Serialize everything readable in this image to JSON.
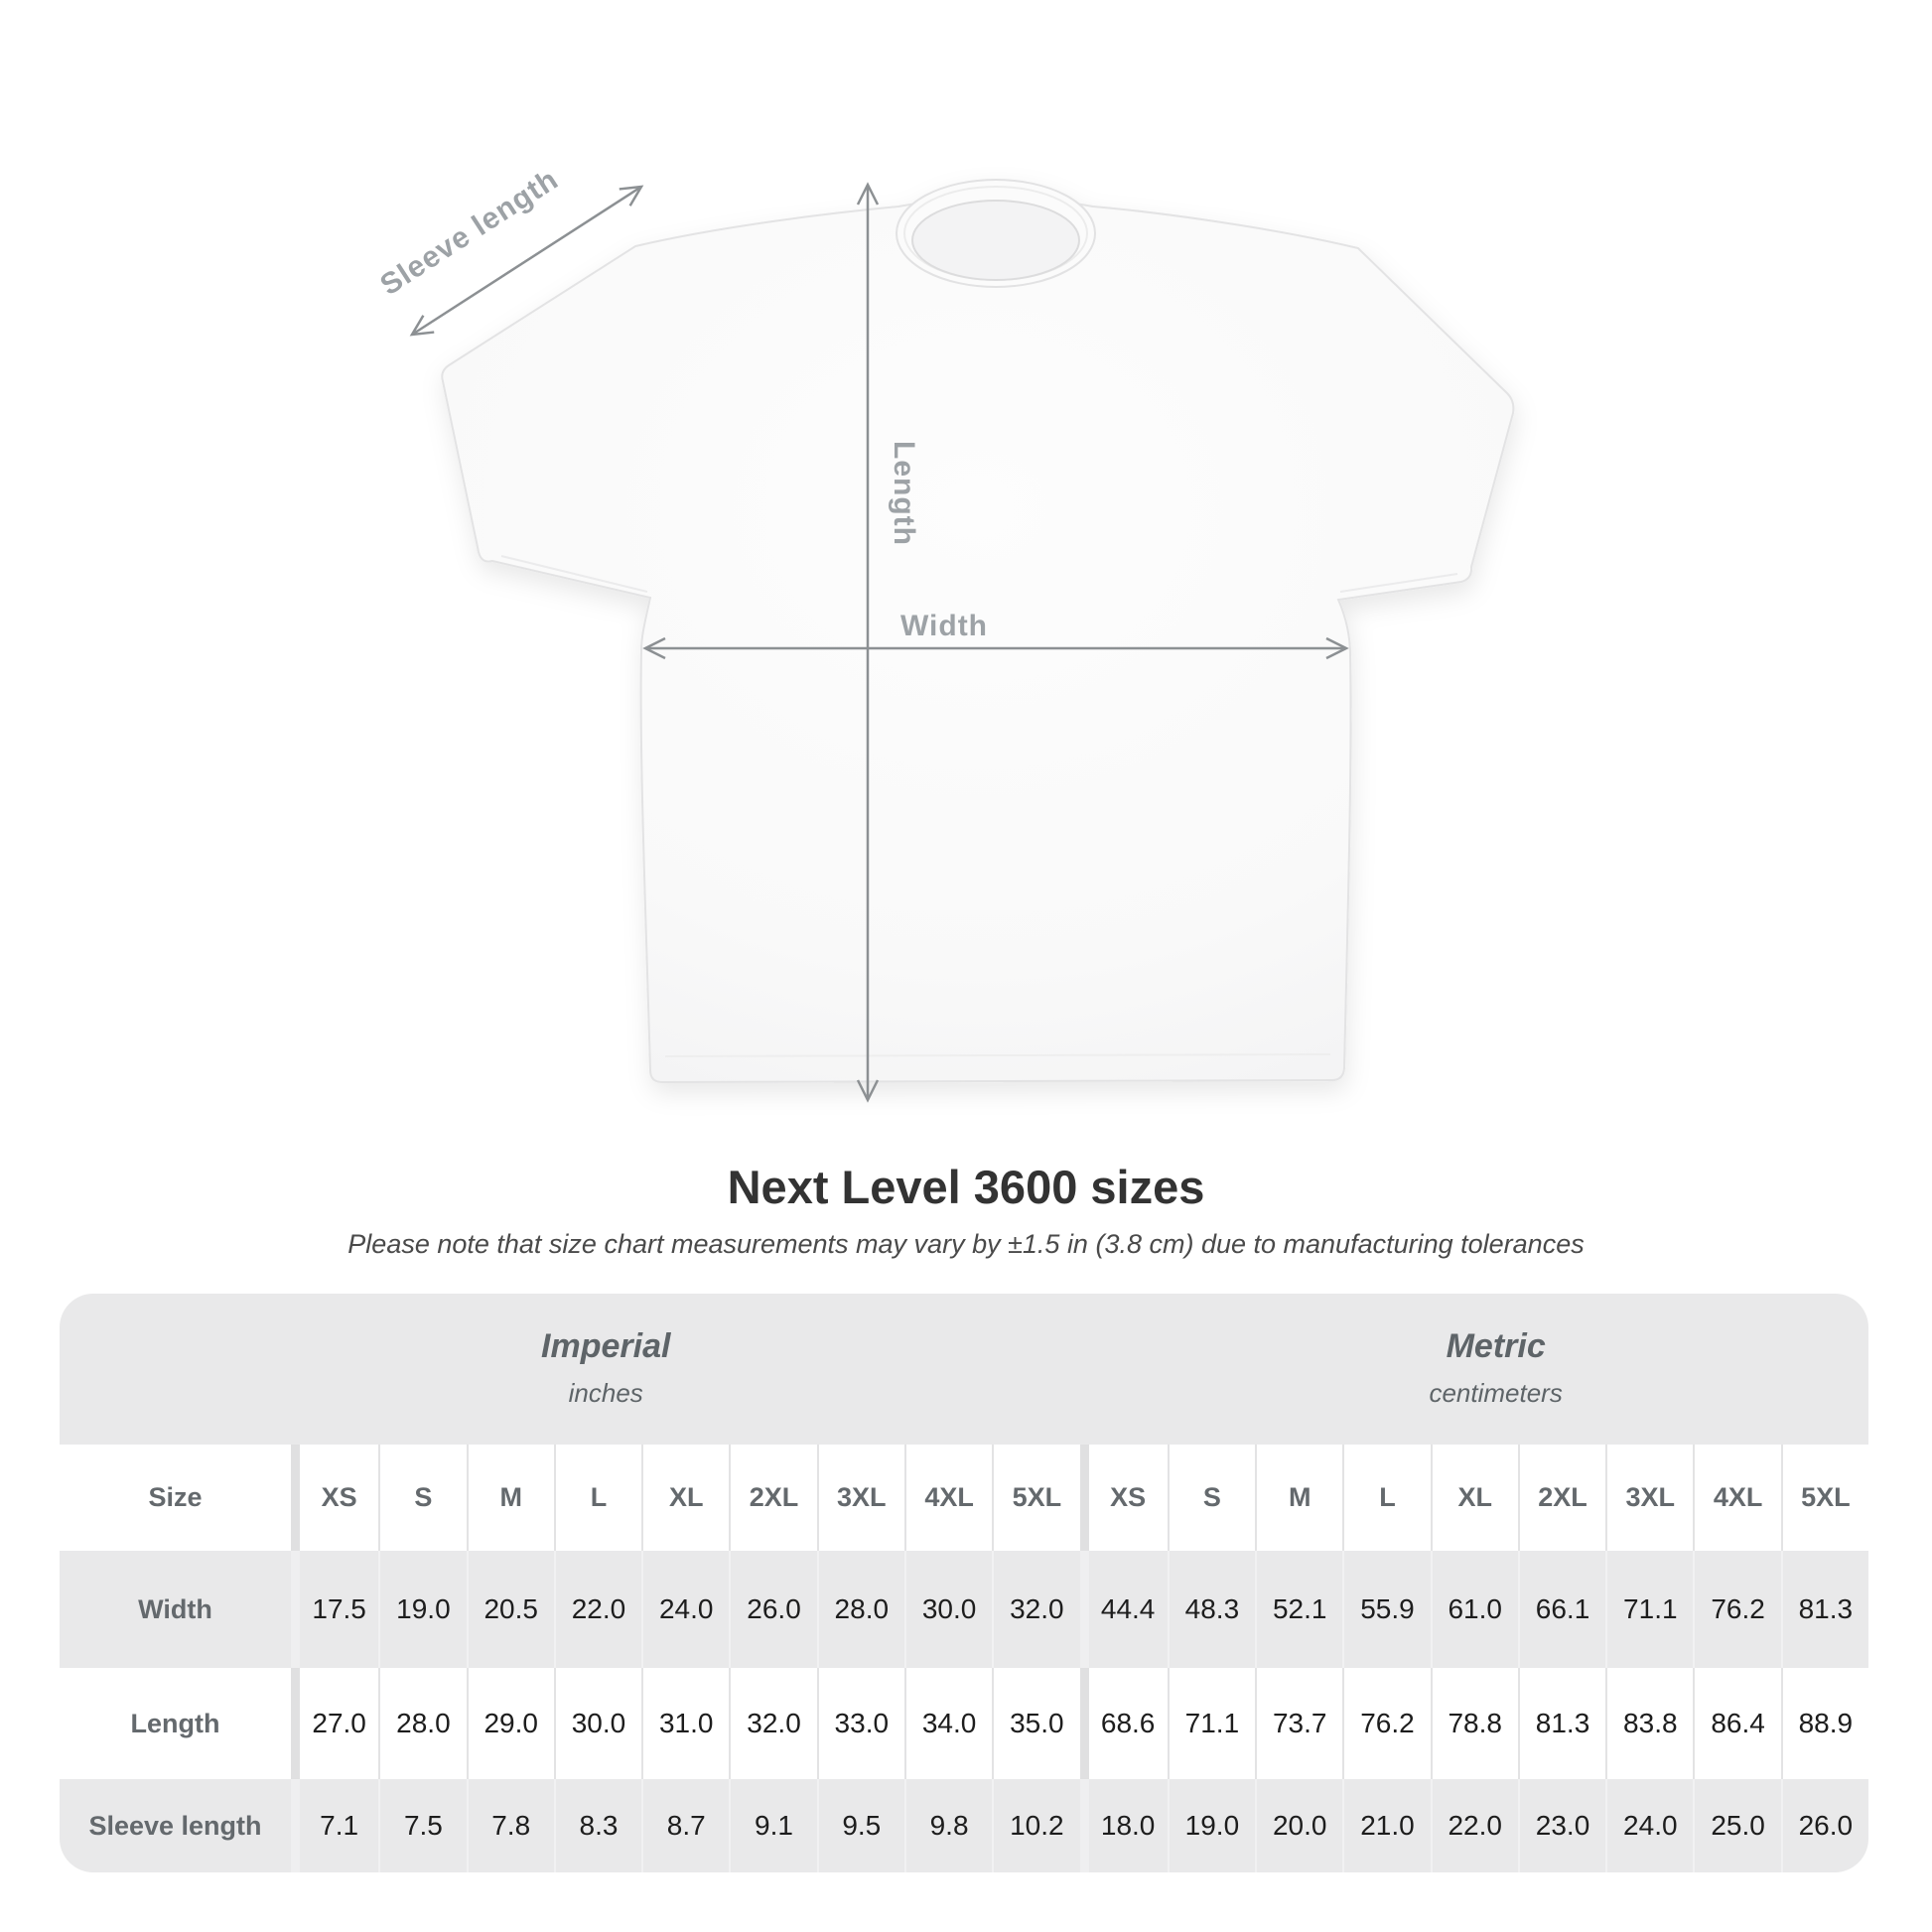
{
  "diagram": {
    "sleeve_length_label": "Sleeve length",
    "length_label": "Length",
    "width_label": "Width"
  },
  "title": "Next Level 3600 sizes",
  "note": "Please note that size chart measurements may vary by ±1.5 in (3.8 cm) due to manufacturing tolerances",
  "size_chart": {
    "size_row_label": "Size",
    "sections": [
      {
        "name": "Imperial",
        "unit": "inches",
        "sizes": [
          "XS",
          "S",
          "M",
          "L",
          "XL",
          "2XL",
          "3XL",
          "4XL",
          "5XL"
        ]
      },
      {
        "name": "Metric",
        "unit": "centimeters",
        "sizes": [
          "XS",
          "S",
          "M",
          "L",
          "XL",
          "2XL",
          "3XL",
          "4XL",
          "5XL"
        ]
      }
    ],
    "rows": [
      {
        "label": "Width",
        "imperial": [
          "17.5",
          "19.0",
          "20.5",
          "22.0",
          "24.0",
          "26.0",
          "28.0",
          "30.0",
          "32.0"
        ],
        "metric": [
          "44.4",
          "48.3",
          "52.1",
          "55.9",
          "61.0",
          "66.1",
          "71.1",
          "76.2",
          "81.3"
        ]
      },
      {
        "label": "Length",
        "imperial": [
          "27.0",
          "28.0",
          "29.0",
          "30.0",
          "31.0",
          "32.0",
          "33.0",
          "34.0",
          "35.0"
        ],
        "metric": [
          "68.6",
          "71.1",
          "73.7",
          "76.2",
          "78.8",
          "81.3",
          "83.8",
          "86.4",
          "88.9"
        ]
      },
      {
        "label": "Sleeve length",
        "imperial": [
          "7.1",
          "7.5",
          "7.8",
          "8.3",
          "8.7",
          "9.1",
          "9.5",
          "9.8",
          "10.2"
        ],
        "metric": [
          "18.0",
          "19.0",
          "20.0",
          "21.0",
          "22.0",
          "23.0",
          "24.0",
          "25.0",
          "26.0"
        ]
      }
    ]
  },
  "chart_data": {
    "type": "table",
    "title": "Next Level 3600 sizes",
    "columns": [
      "XS",
      "S",
      "M",
      "L",
      "XL",
      "2XL",
      "3XL",
      "4XL",
      "5XL"
    ],
    "imperial_inches": {
      "Width": [
        17.5,
        19.0,
        20.5,
        22.0,
        24.0,
        26.0,
        28.0,
        30.0,
        32.0
      ],
      "Length": [
        27.0,
        28.0,
        29.0,
        30.0,
        31.0,
        32.0,
        33.0,
        34.0,
        35.0
      ],
      "Sleeve length": [
        7.1,
        7.5,
        7.8,
        8.3,
        8.7,
        9.1,
        9.5,
        9.8,
        10.2
      ]
    },
    "metric_centimeters": {
      "Width": [
        44.4,
        48.3,
        52.1,
        55.9,
        61.0,
        66.1,
        71.1,
        76.2,
        81.3
      ],
      "Length": [
        68.6,
        71.1,
        73.7,
        76.2,
        78.8,
        81.3,
        83.8,
        86.4,
        88.9
      ],
      "Sleeve length": [
        18.0,
        19.0,
        20.0,
        21.0,
        22.0,
        23.0,
        24.0,
        25.0,
        26.0
      ]
    }
  },
  "colors": {
    "card_bg": "#e9e9ea",
    "unit_header_text": "#5e6468",
    "table_label_text": "#64696d",
    "value_text": "#1d1d1d",
    "diagram_label": "#9da2a6",
    "arrow": "#8c9093",
    "title_text": "#333333"
  }
}
